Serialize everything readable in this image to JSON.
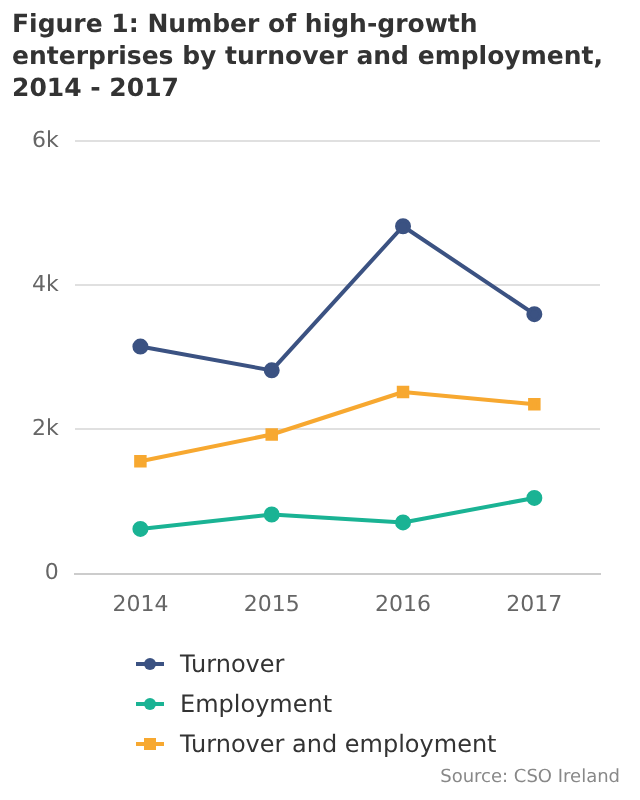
{
  "chart_data": {
    "type": "line",
    "title": "Figure 1: Number of high-growth enterprises by turnover and employment, 2014 - 2017",
    "categories": [
      "2014",
      "2015",
      "2016",
      "2017"
    ],
    "series": [
      {
        "name": "Turnover",
        "color": "#3b5282",
        "values": [
          3150,
          2820,
          4820,
          3600
        ],
        "marker": "circle"
      },
      {
        "name": "Employment",
        "color": "#1ab394",
        "values": [
          620,
          820,
          710,
          1050
        ],
        "marker": "circle"
      },
      {
        "name": "Turnover and employment",
        "color": "#f7a830",
        "values": [
          1560,
          1930,
          2520,
          2350
        ],
        "marker": "square"
      }
    ],
    "ylim": [
      0,
      6000
    ],
    "yticks": [
      {
        "value": 0,
        "label": "0"
      },
      {
        "value": 2000,
        "label": "2k"
      },
      {
        "value": 4000,
        "label": "4k"
      },
      {
        "value": 6000,
        "label": "6k"
      }
    ],
    "grid": "y",
    "legend": "bottom",
    "line_style": "solid",
    "annotations": [
      "Source: CSO Ireland"
    ]
  }
}
